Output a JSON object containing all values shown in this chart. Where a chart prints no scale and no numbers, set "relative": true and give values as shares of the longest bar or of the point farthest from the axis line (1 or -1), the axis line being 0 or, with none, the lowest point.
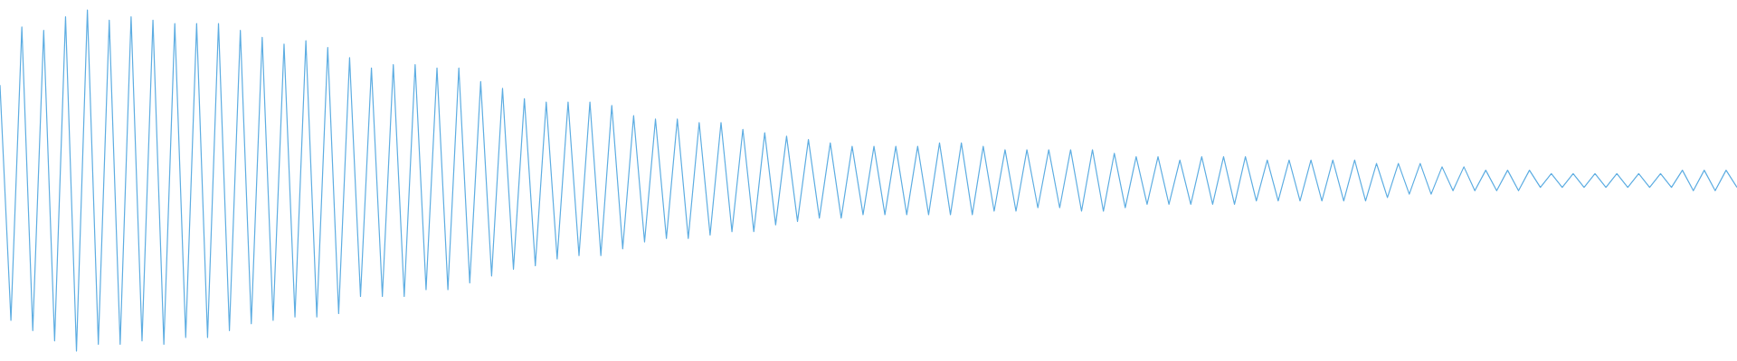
{
  "chart_data": {
    "type": "line",
    "relative": true,
    "color": "#5dade2",
    "categories": [
      null,
      null,
      null,
      null,
      null,
      null,
      null,
      null,
      null,
      null,
      null,
      null,
      null,
      null,
      null,
      null,
      null,
      null,
      null,
      null,
      null,
      null,
      null,
      null,
      null,
      null,
      null,
      null,
      null,
      null,
      null,
      null,
      null,
      null,
      null,
      null,
      null,
      null,
      null,
      null,
      null,
      null,
      null,
      null,
      null,
      null,
      null,
      null,
      null,
      null,
      null,
      null,
      null,
      null,
      null,
      null,
      null,
      null,
      null,
      null,
      null,
      null,
      null,
      null,
      null,
      null,
      null,
      null,
      null,
      null,
      null,
      null,
      null,
      null,
      null,
      null,
      null,
      null,
      null,
      null,
      null,
      null,
      null,
      null,
      null,
      null,
      null,
      null,
      null,
      null,
      null,
      null,
      null,
      null,
      null,
      null,
      null,
      null,
      null,
      null,
      null,
      null,
      null,
      null,
      null,
      null,
      null,
      null,
      null,
      null,
      null,
      null,
      null,
      null,
      null,
      null,
      null,
      null,
      null,
      null,
      null,
      null,
      null,
      null,
      null,
      null,
      null,
      null,
      null,
      null,
      null,
      null,
      null,
      null,
      null,
      null,
      null,
      null,
      null,
      null,
      null,
      null,
      null,
      null,
      null,
      null,
      null,
      null,
      null,
      null,
      null,
      null,
      null,
      null,
      null,
      null,
      null,
      null,
      null,
      null
    ],
    "values": [
      0.78,
      0.09,
      0.95,
      0.06,
      0.94,
      0.03,
      0.98,
      0.0,
      1.0,
      0.02,
      0.97,
      0.02,
      0.98,
      0.03,
      0.97,
      0.02,
      0.96,
      0.04,
      0.96,
      0.04,
      0.96,
      0.06,
      0.94,
      0.08,
      0.92,
      0.09,
      0.9,
      0.1,
      0.91,
      0.1,
      0.89,
      0.11,
      0.86,
      0.16,
      0.83,
      0.16,
      0.84,
      0.16,
      0.84,
      0.18,
      0.83,
      0.18,
      0.83,
      0.2,
      0.79,
      0.22,
      0.77,
      0.24,
      0.74,
      0.25,
      0.73,
      0.27,
      0.73,
      0.28,
      0.73,
      0.28,
      0.72,
      0.3,
      0.69,
      0.32,
      0.68,
      0.33,
      0.68,
      0.33,
      0.67,
      0.34,
      0.67,
      0.35,
      0.65,
      0.35,
      0.64,
      0.37,
      0.63,
      0.38,
      0.62,
      0.39,
      0.61,
      0.39,
      0.6,
      0.4,
      0.6,
      0.4,
      0.6,
      0.4,
      0.6,
      0.4,
      0.61,
      0.4,
      0.61,
      0.4,
      0.6,
      0.41,
      0.59,
      0.41,
      0.59,
      0.42,
      0.59,
      0.42,
      0.59,
      0.41,
      0.59,
      0.41,
      0.58,
      0.42,
      0.57,
      0.43,
      0.57,
      0.43,
      0.56,
      0.43,
      0.57,
      0.43,
      0.57,
      0.43,
      0.57,
      0.44,
      0.56,
      0.44,
      0.56,
      0.44,
      0.56,
      0.44,
      0.56,
      0.44,
      0.56,
      0.44,
      0.55,
      0.45,
      0.55,
      0.46,
      0.55,
      0.46,
      0.54,
      0.47,
      0.54,
      0.47,
      0.53,
      0.47,
      0.53,
      0.47,
      0.53,
      0.48,
      0.52,
      0.48,
      0.52,
      0.48,
      0.52,
      0.48,
      0.52,
      0.48,
      0.52,
      0.48,
      0.52,
      0.48,
      0.53,
      0.47,
      0.53,
      0.47,
      0.53,
      0.48
    ]
  }
}
